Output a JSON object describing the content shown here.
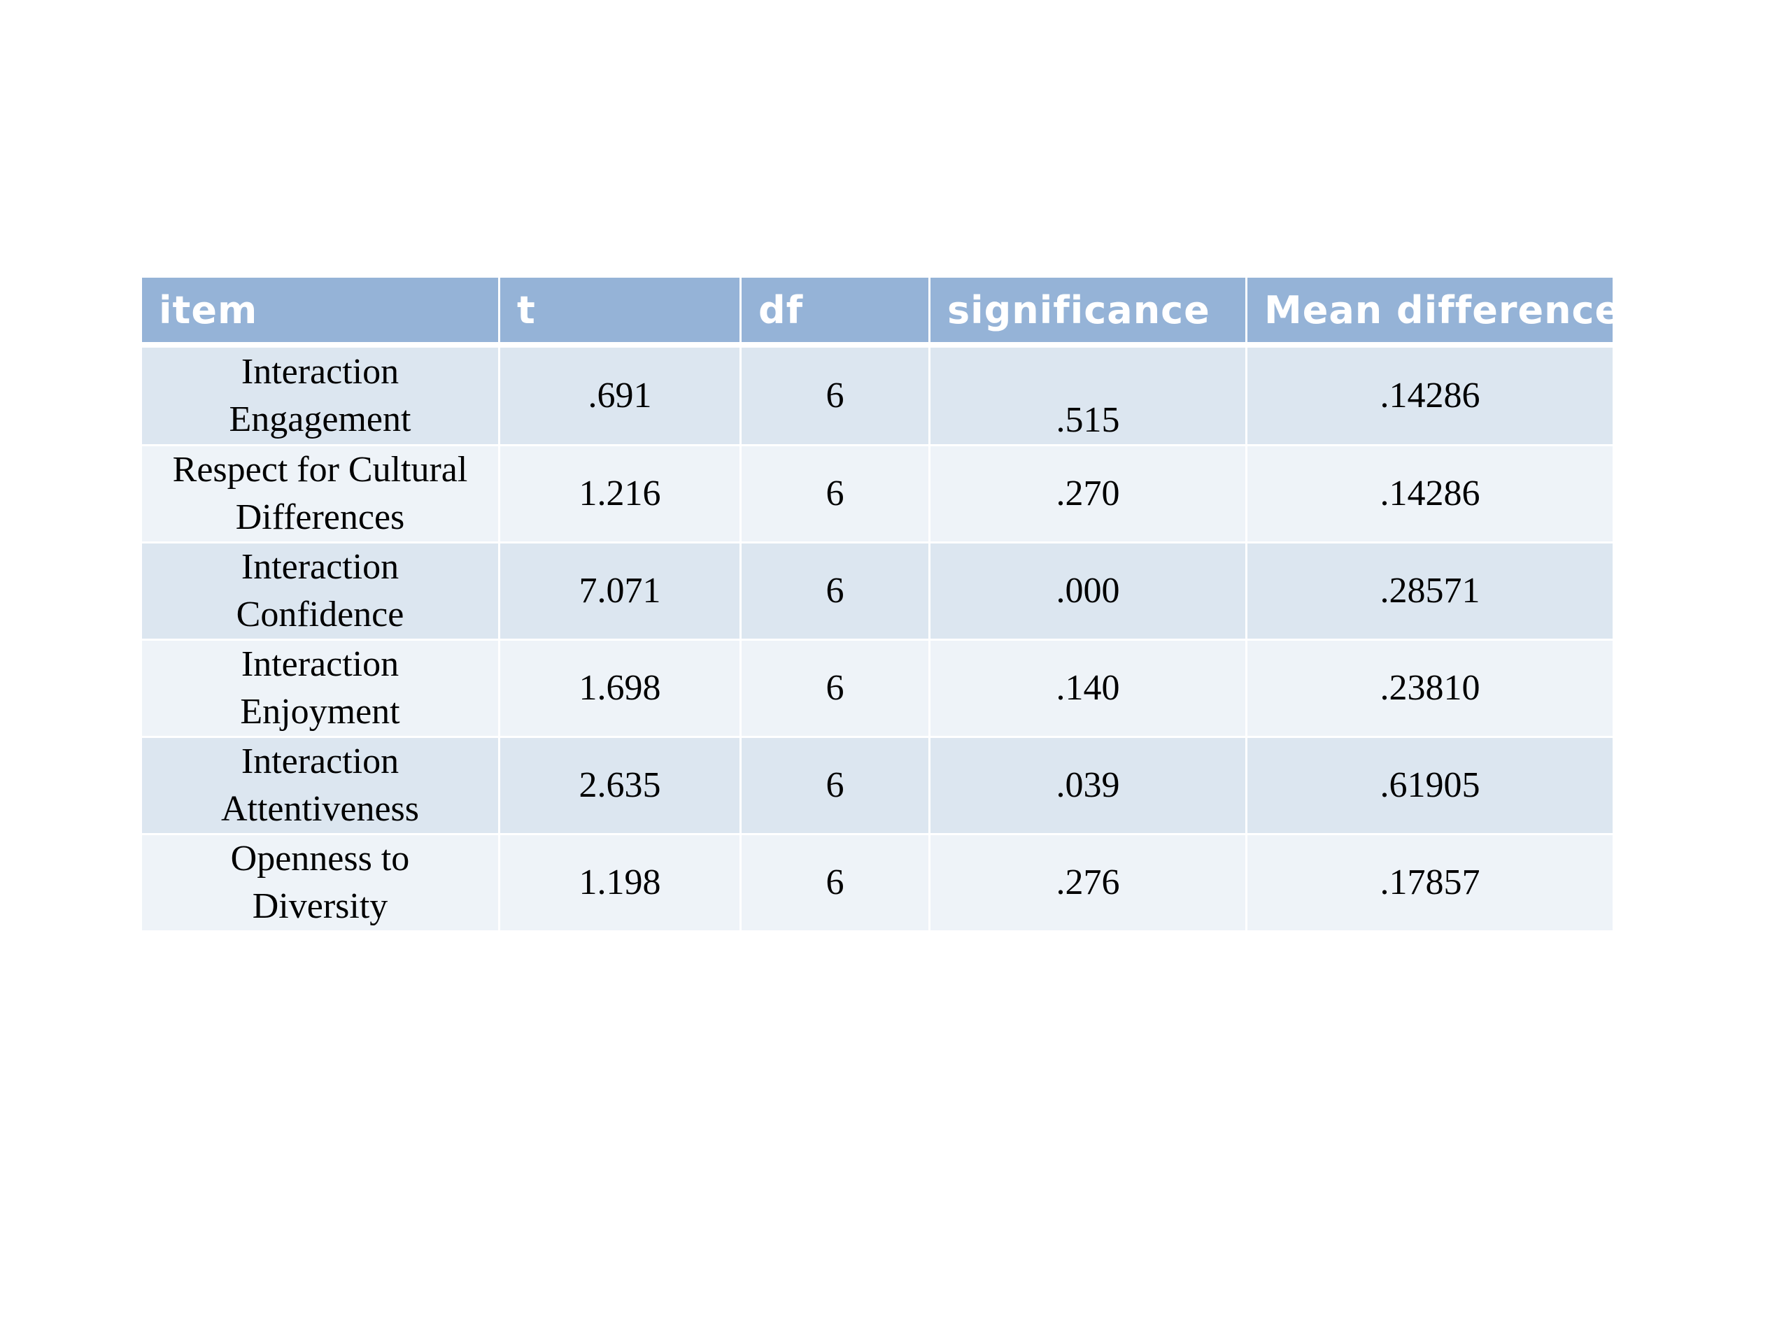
{
  "table": {
    "headers": [
      "item",
      "t",
      "df",
      "significance",
      "Mean difference"
    ],
    "rows": [
      {
        "item_line1": "Interaction",
        "item_line2": "Engagement",
        "t": ".691",
        "df": "6",
        "significance": ".515",
        "mean_difference": ".14286"
      },
      {
        "item_line1": "Respect for Cultural",
        "item_line2": "Differences",
        "t": "1.216",
        "df": "6",
        "significance": ".270",
        "mean_difference": ".14286"
      },
      {
        "item_line1": "Interaction",
        "item_line2": "Confidence",
        "t": "7.071",
        "df": "6",
        "significance": ".000",
        "mean_difference": ".28571"
      },
      {
        "item_line1": "Interaction",
        "item_line2": "Enjoyment",
        "t": "1.698",
        "df": "6",
        "significance": ".140",
        "mean_difference": ".23810"
      },
      {
        "item_line1": "Interaction",
        "item_line2": "Attentiveness",
        "t": "2.635",
        "df": "6",
        "significance": ".039",
        "mean_difference": ".61905"
      },
      {
        "item_line1": "Openness to",
        "item_line2": "Diversity",
        "t": "1.198",
        "df": "6",
        "significance": ".276",
        "mean_difference": ".17857"
      }
    ]
  },
  "colors": {
    "header_bg": "#95b3d7",
    "row_dark": "#dce6f0",
    "row_light": "#eef3f8",
    "header_text": "#ffffff"
  }
}
